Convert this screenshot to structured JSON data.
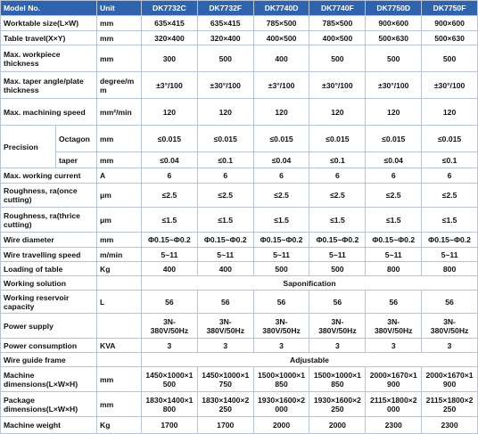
{
  "header": [
    "Model No.",
    "Unit",
    "DK7732C",
    "DK7732F",
    "DK7740D",
    "DK7740F",
    "DK7750D",
    "DK7750F"
  ],
  "rows": [
    {
      "label": "Worktable size(L×W)",
      "unit": "mm",
      "values": [
        "635×415",
        "635×415",
        "785×500",
        "785×500",
        "900×600",
        "900×600"
      ]
    },
    {
      "label": "Table travel(X×Y)",
      "unit": "mm",
      "values": [
        "320×400",
        "320×400",
        "400×500",
        "400×500",
        "500×630",
        "500×630"
      ]
    },
    {
      "label": "Max. workpiece thickness",
      "unit": "mm",
      "values": [
        "300",
        "500",
        "400",
        "500",
        "500",
        "500"
      ]
    },
    {
      "label": "Max. taper angle/plate thickness",
      "unit": "degree/mm",
      "values": [
        "±3°/100",
        "±30°/100",
        "±3°/100",
        "±30°/100",
        "±30°/100",
        "±30°/100"
      ]
    },
    {
      "label": "Max. machining speed",
      "unit": "mm²/min",
      "values": [
        "120",
        "120",
        "120",
        "120",
        "120",
        "120"
      ]
    },
    {
      "group": "Precision",
      "rows": [
        {
          "label": "Octagon",
          "unit": "mm",
          "values": [
            "≤0.015",
            "≤0.015",
            "≤0.015",
            "≤0.015",
            "≤0.015",
            "≤0.015"
          ]
        },
        {
          "label": "taper",
          "unit": "mm",
          "values": [
            "≤0.04",
            "≤0.1",
            "≤0.04",
            "≤0.1",
            "≤0.04",
            "≤0.1"
          ]
        }
      ]
    },
    {
      "label": "Max. working current",
      "unit": "A",
      "values": [
        "6",
        "6",
        "6",
        "6",
        "6",
        "6"
      ]
    },
    {
      "label": "Roughness, ra(once cutting)",
      "unit": "μm",
      "values": [
        "≤2.5",
        "≤2.5",
        "≤2.5",
        "≤2.5",
        "≤2.5",
        "≤2.5"
      ]
    },
    {
      "label": "Roughness, ra(thrice cutting)",
      "unit": "μm",
      "values": [
        "≤1.5",
        "≤1.5",
        "≤1.5",
        "≤1.5",
        "≤1.5",
        "≤1.5"
      ]
    },
    {
      "label": "Wire diameter",
      "unit": "mm",
      "values": [
        "Φ0.15~Φ0.2",
        "Φ0.15~Φ0.2",
        "Φ0.15~Φ0.2",
        "Φ0.15~Φ0.2",
        "Φ0.15~Φ0.2",
        "Φ0.15~Φ0.2"
      ]
    },
    {
      "label": "Wire travelling speed",
      "unit": "m/min",
      "values": [
        "5~11",
        "5~11",
        "5~11",
        "5~11",
        "5~11",
        "5~11"
      ]
    },
    {
      "label": "Loading of table",
      "unit": "Kg",
      "values": [
        "400",
        "400",
        "500",
        "500",
        "800",
        "800"
      ]
    },
    {
      "label": "Working solution",
      "merged": "Saponification"
    },
    {
      "label": "Working reservoir capacity",
      "unit": "L",
      "values": [
        "56",
        "56",
        "56",
        "56",
        "56",
        "56"
      ]
    },
    {
      "label": "Power supply",
      "values": [
        "3N-380V/50Hz",
        "3N-380V/50Hz",
        "3N-380V/50Hz",
        "3N-380V/50Hz",
        "3N-380V/50Hz",
        "3N-380V/50Hz"
      ]
    },
    {
      "label": "Power consumption",
      "unit": "KVA",
      "values": [
        "3",
        "3",
        "3",
        "3",
        "3",
        "3"
      ]
    },
    {
      "label": "Wire guide frame",
      "merged": "Adjustable"
    },
    {
      "label": "Machine dimensions(L×W×H)",
      "unit": "mm",
      "values": [
        "1450×1000×1500",
        "1450×1000×1750",
        "1500×1000×1850",
        "1500×1000×1850",
        "2000×1670×1900",
        "2000×1670×1900"
      ]
    },
    {
      "label": "Package dimensions(L×W×H)",
      "unit": "mm",
      "values": [
        "1830×1400×1800",
        "1830×1400×2250",
        "1930×1600×2000",
        "1930×1600×2250",
        "2115×1800×2000",
        "2115×1800×2250"
      ]
    },
    {
      "label": "Machine weight",
      "unit": "Kg",
      "values": [
        "1700",
        "1700",
        "2000",
        "2000",
        "2300",
        "2300"
      ]
    }
  ]
}
